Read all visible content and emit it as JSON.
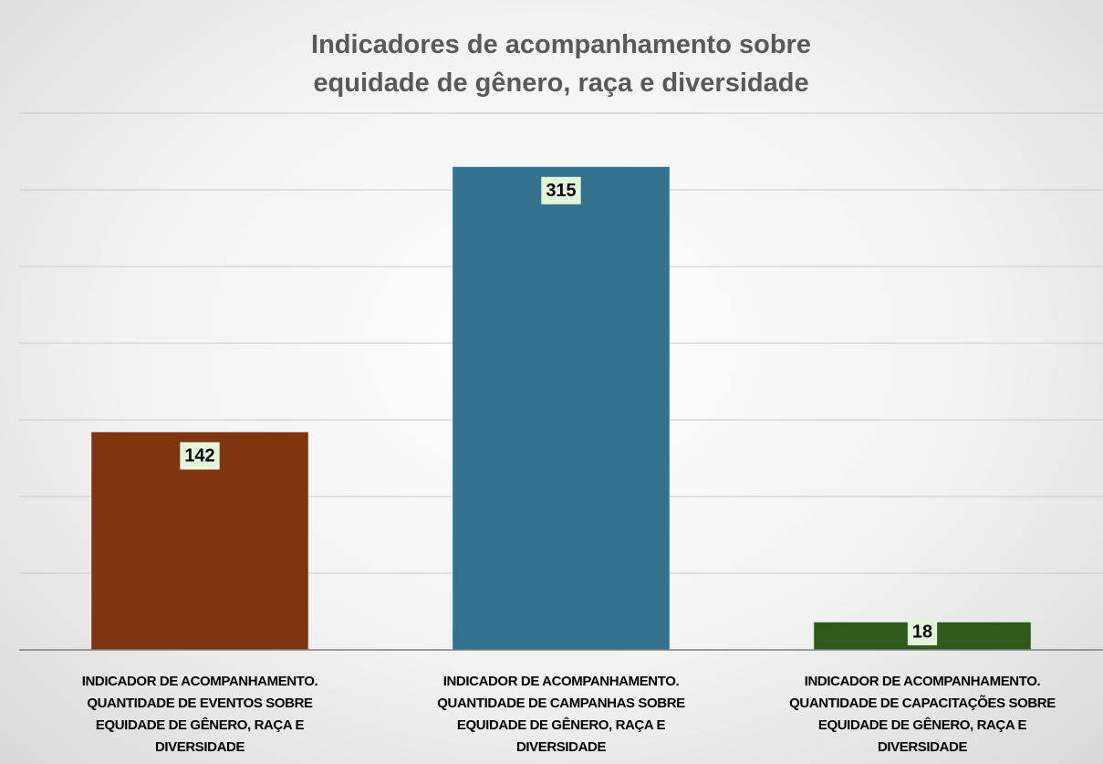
{
  "chart_data": {
    "type": "bar",
    "title": "Indicadores de acompanhamento sobre\nequidade de gênero, raça e diversidade",
    "categories": [
      "INDICADOR DE ACOMPANHAMENTO.\nQUANTIDADE DE EVENTOS SOBRE\nEQUIDADE DE GÊNERO, RAÇA E\nDIVERSIDADE",
      "INDICADOR DE ACOMPANHAMENTO.\nQUANTIDADE DE CAMPANHAS SOBRE\nEQUIDADE DE GÊNERO, RAÇA E\nDIVERSIDADE",
      "INDICADOR DE ACOMPANHAMENTO.\nQUANTIDADE DE CAPACITAÇÕES SOBRE\nEQUIDADE DE GÊNERO, RAÇA E\nDIVERSIDADE"
    ],
    "values": [
      142,
      315,
      18
    ],
    "colors": [
      "#7f3510",
      "#33718f",
      "#2e5a1c"
    ],
    "ylim": [
      0,
      350
    ],
    "yticks": [
      0,
      50,
      100,
      150,
      200,
      250,
      300,
      350
    ],
    "grid": true
  }
}
